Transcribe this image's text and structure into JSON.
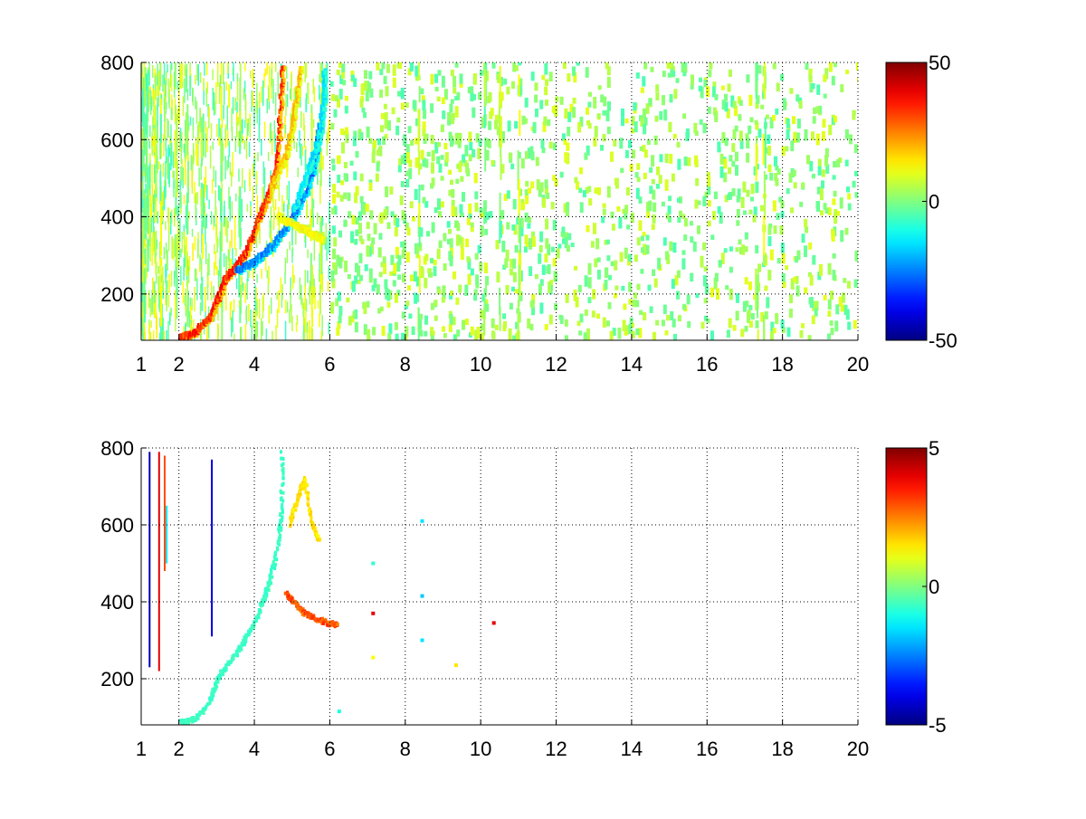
{
  "chart_data": [
    {
      "type": "heatmap",
      "title": "",
      "xlabel": "",
      "ylabel": "",
      "xlim": [
        1,
        20
      ],
      "ylim": [
        80,
        800
      ],
      "xticks": [
        1,
        2,
        4,
        6,
        8,
        10,
        12,
        14,
        16,
        18,
        20
      ],
      "yticks": [
        200,
        400,
        600,
        800
      ],
      "grid": true,
      "grid_style": "dotted",
      "colormap": "jet",
      "clim": [
        -50,
        50
      ],
      "colorbar_ticks": [
        -50,
        0,
        50
      ],
      "features": [
        {
          "name": "rising ridge",
          "sign": "positive",
          "points": [
            [
              2.0,
              85
            ],
            [
              2.4,
              100
            ],
            [
              2.8,
              140
            ],
            [
              3.0,
              190
            ],
            [
              3.2,
              240
            ],
            [
              3.5,
              270
            ],
            [
              3.8,
              320
            ],
            [
              4.1,
              400
            ],
            [
              4.4,
              470
            ],
            [
              4.6,
              560
            ],
            [
              4.7,
              800
            ]
          ],
          "strength": 40
        },
        {
          "name": "branch ridge",
          "sign": "positive",
          "points": [
            [
              4.4,
              470
            ],
            [
              4.8,
              560
            ],
            [
              5.0,
              650
            ],
            [
              5.2,
              790
            ]
          ],
          "strength": 22
        },
        {
          "name": "lower negative arc",
          "sign": "negative",
          "points": [
            [
              3.5,
              260
            ],
            [
              4.0,
              285
            ],
            [
              4.5,
              330
            ],
            [
              5.0,
              400
            ],
            [
              5.4,
              480
            ],
            [
              5.6,
              560
            ],
            [
              5.7,
              640
            ]
          ],
          "strength": -30
        },
        {
          "name": "upper negative arc",
          "sign": "negative",
          "points": [
            [
              5.0,
              420
            ],
            [
              5.4,
              520
            ],
            [
              5.7,
              620
            ],
            [
              5.8,
              700
            ],
            [
              5.8,
              780
            ]
          ],
          "strength": -18
        },
        {
          "name": "lower positive arc",
          "sign": "positive",
          "points": [
            [
              4.6,
              400
            ],
            [
              5.0,
              380
            ],
            [
              5.4,
              360
            ],
            [
              5.8,
              340
            ]
          ],
          "strength": 15
        }
      ]
    },
    {
      "type": "heatmap",
      "title": "",
      "xlabel": "",
      "ylabel": "",
      "xlim": [
        1,
        20
      ],
      "ylim": [
        80,
        800
      ],
      "xticks": [
        1,
        2,
        4,
        6,
        8,
        10,
        12,
        14,
        16,
        18,
        20
      ],
      "yticks": [
        200,
        400,
        600,
        800
      ],
      "grid": true,
      "grid_style": "dotted",
      "colormap": "jet",
      "clim": [
        -5,
        5
      ],
      "colorbar_ticks": [
        -5,
        0,
        5
      ],
      "features": [
        {
          "name": "ridge",
          "points": [
            [
              2.0,
              85
            ],
            [
              2.4,
              95
            ],
            [
              2.8,
              140
            ],
            [
              3.0,
              200
            ],
            [
              3.3,
              240
            ],
            [
              3.6,
              280
            ],
            [
              3.9,
              330
            ],
            [
              4.2,
              400
            ],
            [
              4.4,
              460
            ],
            [
              4.6,
              550
            ],
            [
              4.7,
              640
            ],
            [
              4.7,
              790
            ]
          ],
          "value": -0.8
        },
        {
          "name": "positive tail",
          "points": [
            [
              4.8,
              420
            ],
            [
              5.0,
              400
            ],
            [
              5.3,
              370
            ],
            [
              5.6,
              355
            ],
            [
              5.9,
              345
            ],
            [
              6.2,
              338
            ]
          ],
          "value": 3.5
        },
        {
          "name": "upper scatter",
          "points": [
            [
              4.9,
              600
            ],
            [
              5.1,
              660
            ],
            [
              5.3,
              720
            ],
            [
              5.5,
              600
            ],
            [
              5.7,
              560
            ]
          ],
          "value": 1.8
        }
      ],
      "vertical_streaks": [
        {
          "x": 1.2,
          "y": [
            230,
            790
          ],
          "value": -4.5
        },
        {
          "x": 1.45,
          "y": [
            220,
            790
          ],
          "value": 4.0
        },
        {
          "x": 1.6,
          "y": [
            480,
            780
          ],
          "value": 3.0
        },
        {
          "x": 1.65,
          "y": [
            500,
            650
          ],
          "value": -1.5
        },
        {
          "x": 2.85,
          "y": [
            310,
            770
          ],
          "value": -4.0
        }
      ],
      "isolated_points": [
        {
          "x": 7.1,
          "y": 370,
          "value": 4.0
        },
        {
          "x": 8.4,
          "y": 610,
          "value": -1.5
        },
        {
          "x": 8.4,
          "y": 415,
          "value": -1.8
        },
        {
          "x": 8.4,
          "y": 300,
          "value": -1.5
        },
        {
          "x": 9.3,
          "y": 235,
          "value": 1.5
        },
        {
          "x": 10.3,
          "y": 345,
          "value": 4.0
        },
        {
          "x": 6.2,
          "y": 115,
          "value": -1.0
        },
        {
          "x": 7.1,
          "y": 255,
          "value": 1.2
        },
        {
          "x": 7.1,
          "y": 500,
          "value": -0.8
        }
      ]
    }
  ]
}
